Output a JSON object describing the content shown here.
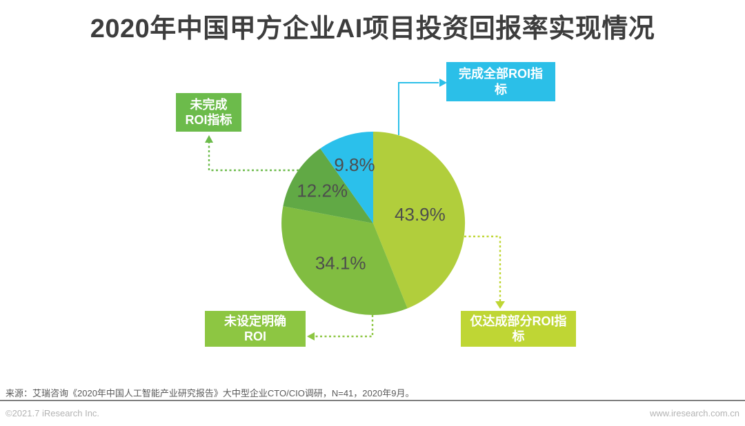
{
  "header": {
    "title": "2020年中国甲方企业AI项目投资回报率实现情况"
  },
  "chart_data": {
    "type": "pie",
    "title": "2020年中国甲方企业AI项目投资回报率实现情况",
    "start_angle_deg": 0,
    "direction": "clockwise",
    "values_position": "inside",
    "value_label_color": "#4d4d4d",
    "slices": [
      {
        "label": "仅达成部分ROI指标",
        "value": 43.9,
        "display": "43.9%",
        "color": "#B1CE3C"
      },
      {
        "label": "未设定明确ROI",
        "value": 34.1,
        "display": "34.1%",
        "color": "#81BD41"
      },
      {
        "label": "未完成ROI指标",
        "value": 12.2,
        "display": "12.2%",
        "color": "#61A945"
      },
      {
        "label": "完成全部ROI指标",
        "value": 9.8,
        "display": "9.8%",
        "color": "#2BC0EB"
      }
    ]
  },
  "callouts": {
    "complete_all": {
      "label": "完成全部ROI指标",
      "color": "#2BBFE8",
      "connector_style": "solid"
    },
    "not_complete": {
      "label": "未完成ROI指标",
      "color": "#6CBB4B",
      "connector_style": "dashed"
    },
    "no_clear_roi": {
      "label": "未设定明确ROI",
      "color": "#8DC642",
      "connector_style": "dashed"
    },
    "partial": {
      "label": "仅达成部分ROI指标",
      "color": "#BFD634",
      "connector_style": "dashed"
    }
  },
  "footer": {
    "source_note": "来源：艾瑞咨询《2020年中国人工智能产业研究报告》大中型企业CTO/CIO调研，N=41，2020年9月。",
    "copyright": "©2021.7 iResearch Inc.",
    "website": "www.iresearch.com.cn"
  }
}
